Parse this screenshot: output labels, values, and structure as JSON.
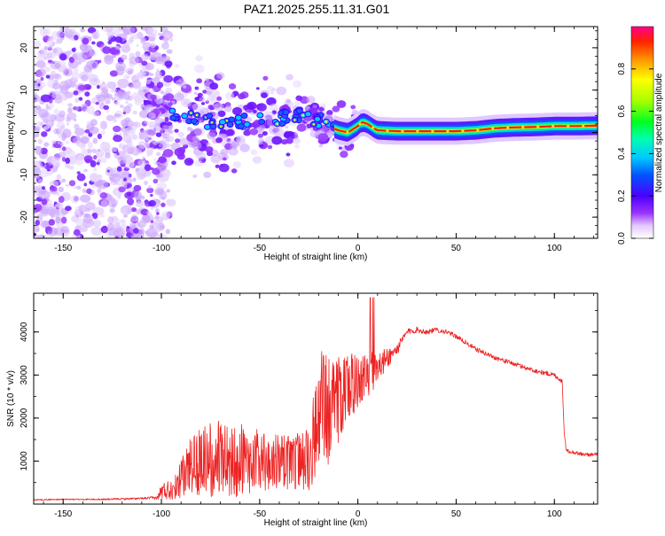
{
  "title": "PAZ1.2025.255.11.31.G01",
  "chart_data": [
    {
      "type": "heatmap",
      "xlabel": "Height of straight line (km)",
      "ylabel": "Frequency (Hz)",
      "xlim": [
        -165,
        122
      ],
      "ylim": [
        -25,
        25
      ],
      "x_ticks": [
        -150,
        -100,
        -50,
        0,
        50,
        100
      ],
      "x_tick_labels": [
        "-150",
        "-100",
        "-50",
        "0",
        "50",
        "100"
      ],
      "y_ticks": [
        -20,
        -10,
        0,
        10,
        20
      ],
      "y_tick_labels": [
        "-20",
        "-10",
        "0",
        "10",
        "20"
      ],
      "colorbar": {
        "label": "Normalized spectral amplitude",
        "range": [
          0,
          1
        ],
        "ticks": [
          0.0,
          0.2,
          0.4,
          0.6,
          0.8
        ],
        "tick_labels": [
          "0.0",
          "0.2",
          "0.4",
          "0.6",
          "0.8"
        ]
      },
      "ridge": {
        "x": [
          -110,
          -100,
          -90,
          -80,
          -70,
          -60,
          -50,
          -40,
          -30,
          -25,
          -20,
          -15,
          -10,
          -5,
          0,
          2,
          5,
          8,
          10,
          20,
          30,
          40,
          50,
          60,
          70,
          80,
          90,
          100,
          110,
          122
        ],
        "frequency": [
          7,
          5,
          4,
          3,
          2,
          2.5,
          3,
          3.5,
          4,
          3.5,
          3,
          1.5,
          0.5,
          0,
          1.5,
          2.5,
          2,
          1,
          0.5,
          0.3,
          0.3,
          0.3,
          0.3,
          0.5,
          1,
          1.2,
          1.3,
          1.5,
          1.5,
          1.6
        ]
      },
      "noise_region_x": [
        -165,
        -95
      ]
    },
    {
      "type": "line",
      "xlabel": "Height of straight line (km)",
      "ylabel": "SNR (10 * v/v)",
      "xlim": [
        -165,
        122
      ],
      "ylim": [
        0,
        4900
      ],
      "x_ticks": [
        -150,
        -100,
        -50,
        0,
        50,
        100
      ],
      "x_tick_labels": [
        "-150",
        "-100",
        "-50",
        "0",
        "50",
        "100"
      ],
      "y_ticks": [
        1000,
        2000,
        3000,
        4000
      ],
      "y_tick_labels": [
        "1000",
        "2000",
        "3000",
        "4000"
      ],
      "line_color": "#ee2222",
      "series": [
        {
          "name": "SNR",
          "x": [
            -165,
            -150,
            -130,
            -110,
            -102,
            -100,
            -95,
            -90,
            -85,
            -80,
            -75,
            -70,
            -65,
            -60,
            -55,
            -50,
            -45,
            -40,
            -35,
            -30,
            -25,
            -22,
            -20,
            -18,
            -15,
            -12,
            -10,
            -8,
            -5,
            -2,
            0,
            2,
            5,
            8,
            10,
            15,
            20,
            25,
            30,
            35,
            40,
            45,
            50,
            60,
            70,
            80,
            90,
            100,
            104,
            105,
            106,
            110,
            115,
            122
          ],
          "values": [
            100,
            110,
            110,
            130,
            150,
            300,
            350,
            600,
            900,
            1000,
            1000,
            1100,
            1000,
            1050,
            1000,
            1000,
            900,
            1000,
            1000,
            950,
            1200,
            1600,
            1800,
            2500,
            2200,
            2300,
            2400,
            2600,
            2700,
            2800,
            2800,
            2900,
            3000,
            3100,
            3200,
            3400,
            3600,
            4000,
            4050,
            4000,
            4050,
            4000,
            3900,
            3600,
            3400,
            3250,
            3100,
            3000,
            2850,
            1700,
            1250,
            1200,
            1150,
            1150
          ],
          "variability": [
            15,
            15,
            18,
            25,
            40,
            200,
            250,
            450,
            650,
            800,
            900,
            900,
            900,
            850,
            800,
            750,
            700,
            650,
            650,
            700,
            900,
            1100,
            1200,
            1300,
            1300,
            1200,
            1100,
            900,
            800,
            700,
            600,
            550,
            500,
            450,
            400,
            250,
            150,
            80,
            70,
            60,
            60,
            55,
            55,
            55,
            55,
            55,
            55,
            55,
            55,
            40,
            45,
            45,
            45,
            45
          ]
        }
      ]
    }
  ]
}
